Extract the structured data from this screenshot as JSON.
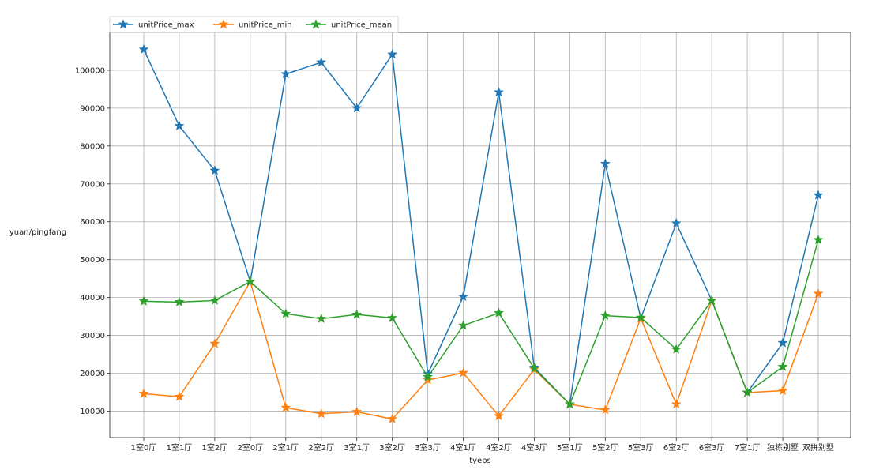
{
  "chart_data": {
    "type": "line",
    "title": "",
    "xlabel": "tyeps",
    "ylabel": "yuan/pingfang",
    "ylim": [
      3000,
      110000
    ],
    "yticks": [
      10000,
      20000,
      30000,
      40000,
      50000,
      60000,
      70000,
      80000,
      90000,
      100000
    ],
    "grid": true,
    "legend_position": "top-left",
    "categories": [
      "1室0厅",
      "1室1厅",
      "1室2厅",
      "2室0厅",
      "2室1厅",
      "2室2厅",
      "3室1厅",
      "3室2厅",
      "3室3厅",
      "4室1厅",
      "4室2厅",
      "4室3厅",
      "5室1厅",
      "5室2厅",
      "5室3厅",
      "6室2厅",
      "6室3厅",
      "7室1厅",
      "独栋别墅",
      "双拼别墅"
    ],
    "series": [
      {
        "name": "unitPrice_max",
        "color": "#1f77b4",
        "marker": "star",
        "values": [
          105500,
          85300,
          73500,
          44200,
          99000,
          102100,
          90000,
          104200,
          19800,
          40200,
          94200,
          21500,
          11800,
          75300,
          34500,
          59600,
          39200,
          14900,
          28000,
          67000
        ]
      },
      {
        "name": "unitPrice_min",
        "color": "#ff7f0e",
        "marker": "star",
        "values": [
          14600,
          13800,
          27800,
          44200,
          10900,
          9300,
          9800,
          7900,
          18200,
          20100,
          8700,
          21000,
          11800,
          10300,
          34500,
          11800,
          39200,
          14900,
          15400,
          41000
        ]
      },
      {
        "name": "unitPrice_mean",
        "color": "#2ca02c",
        "marker": "star",
        "values": [
          39000,
          38800,
          39200,
          44200,
          35700,
          34400,
          35500,
          34600,
          19000,
          32600,
          35900,
          21300,
          11800,
          35200,
          34700,
          26300,
          39200,
          14900,
          21700,
          55200
        ]
      }
    ]
  }
}
